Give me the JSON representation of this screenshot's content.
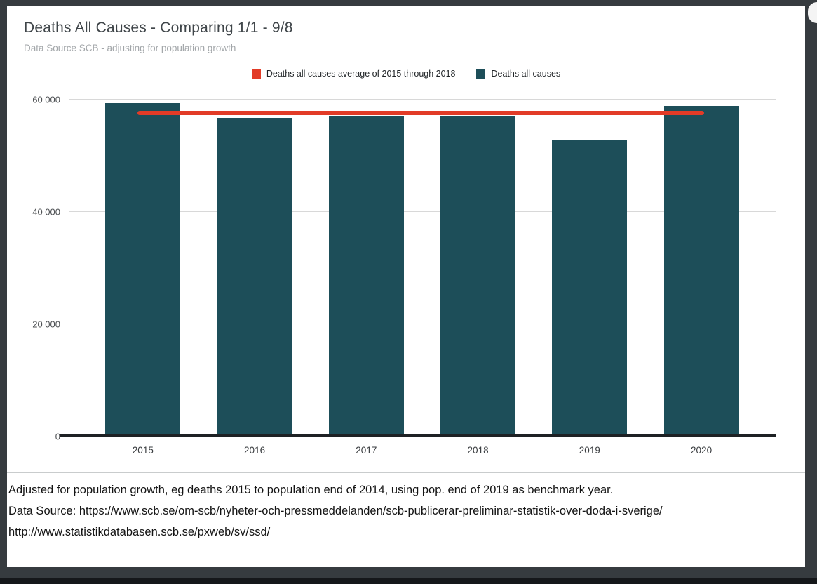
{
  "chart_data": {
    "type": "bar",
    "title": "Deaths All Causes - Comparing 1/1 - 9/8",
    "subtitle": "Data Source SCB - adjusting for population growth",
    "categories": [
      "2015",
      "2016",
      "2017",
      "2018",
      "2019",
      "2020"
    ],
    "series": [
      {
        "name": "Deaths all causes",
        "color": "#1d4e59",
        "values": [
          59400,
          56800,
          57100,
          57100,
          52800,
          58900
        ]
      }
    ],
    "average_line": {
      "name": "Deaths all causes average of 2015 through 2018",
      "color": "#e23b27",
      "value": 57600
    },
    "ylim": [
      0,
      60000
    ],
    "yticks": [
      0,
      20000,
      40000,
      60000
    ],
    "ytick_labels": [
      "0",
      "20 000",
      "40 000",
      "60 000"
    ],
    "grid": true,
    "legend_position": "top"
  },
  "footer": {
    "line1": "Adjusted for population growth, eg deaths 2015 to population end of 2014, using pop. end of 2019 as benchmark year.",
    "line2": "Data Source: https://www.scb.se/om-scb/nyheter-och-pressmeddelanden/scb-publicerar-preliminar-statistik-over-doda-i-sverige/",
    "line3": "http://www.statistikdatabasen.scb.se/pxweb/sv/ssd/"
  }
}
